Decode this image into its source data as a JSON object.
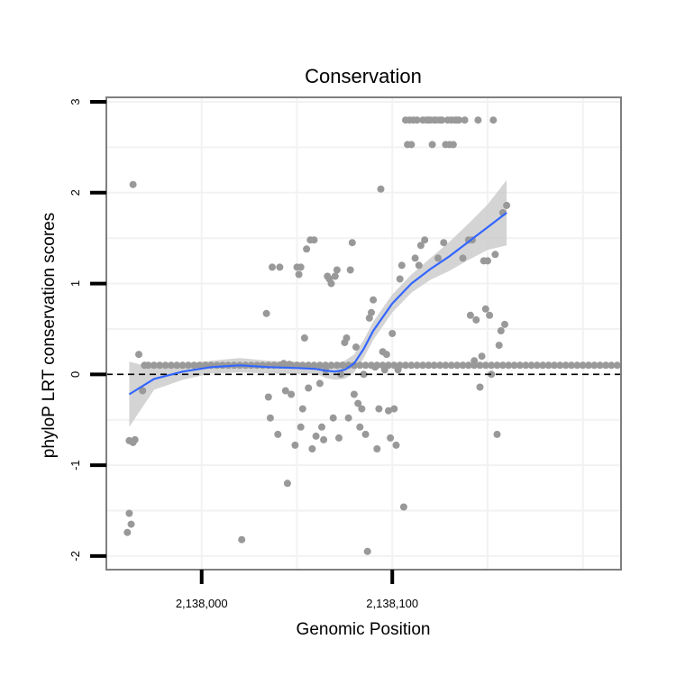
{
  "chart_data": {
    "type": "scatter",
    "title": "Conservation",
    "xlabel": "Genomic Position",
    "ylabel": "phyloP LRT conservation scores",
    "xlim": [
      2137950,
      2138220
    ],
    "ylim": [
      -2.15,
      3.05
    ],
    "x_ticks": [
      {
        "value": 2138000,
        "label": "2,138,000"
      },
      {
        "value": 2138100,
        "label": "2,138,100"
      }
    ],
    "y_ticks": [
      {
        "value": -2,
        "label": "-2"
      },
      {
        "value": -1,
        "label": "-1"
      },
      {
        "value": 0,
        "label": "0"
      },
      {
        "value": 1,
        "label": "1"
      },
      {
        "value": 2,
        "label": "2"
      },
      {
        "value": 3,
        "label": "3"
      }
    ],
    "grid": true,
    "reference_line": {
      "y": 0,
      "style": "dashed"
    },
    "colors": {
      "points": "#999999",
      "smooth": "#3366ff",
      "ribbon": "#cccccc",
      "frame": "#7f7f7f"
    },
    "series": [
      {
        "type": "points",
        "points": [
          [
            2137961,
            -1.74
          ],
          [
            2137962,
            -1.53
          ],
          [
            2137963,
            -1.65
          ],
          [
            2137962,
            -0.73
          ],
          [
            2137964,
            -0.75
          ],
          [
            2137965,
            -0.72
          ],
          [
            2137964,
            2.09
          ],
          [
            2137967,
            0.22
          ],
          [
            2137969,
            -0.18
          ],
          [
            2137970,
            0.1
          ],
          [
            2137972,
            0.1
          ],
          [
            2137975,
            0.1
          ],
          [
            2137978,
            0.1
          ],
          [
            2137981,
            0.1
          ],
          [
            2137984,
            0.1
          ],
          [
            2137987,
            0.1
          ],
          [
            2137990,
            0.1
          ],
          [
            2137993,
            0.1
          ],
          [
            2137996,
            0.1
          ],
          [
            2137999,
            0.1
          ],
          [
            2138002,
            0.1
          ],
          [
            2138005,
            0.1
          ],
          [
            2138008,
            0.1
          ],
          [
            2138011,
            0.1
          ],
          [
            2138014,
            0.1
          ],
          [
            2138017,
            0.1
          ],
          [
            2138020,
            0.1
          ],
          [
            2138023,
            0.1
          ],
          [
            2138026,
            0.1
          ],
          [
            2138029,
            0.1
          ],
          [
            2138032,
            0.1
          ],
          [
            2138035,
            0.1
          ],
          [
            2138038,
            0.1
          ],
          [
            2138041,
            0.1
          ],
          [
            2138044,
            0.1
          ],
          [
            2138047,
            0.1
          ],
          [
            2138050,
            0.1
          ],
          [
            2138053,
            0.1
          ],
          [
            2138056,
            0.1
          ],
          [
            2138059,
            0.1
          ],
          [
            2138062,
            0.1
          ],
          [
            2138065,
            0.1
          ],
          [
            2138068,
            0.1
          ],
          [
            2138071,
            0.1
          ],
          [
            2138074,
            0.1
          ],
          [
            2138077,
            0.1
          ],
          [
            2138080,
            0.1
          ],
          [
            2138083,
            0.1
          ],
          [
            2138086,
            0.1
          ],
          [
            2138089,
            0.1
          ],
          [
            2138092,
            0.1
          ],
          [
            2138095,
            0.1
          ],
          [
            2138098,
            0.1
          ],
          [
            2138101,
            0.1
          ],
          [
            2138104,
            0.1
          ],
          [
            2138107,
            0.1
          ],
          [
            2138110,
            0.1
          ],
          [
            2138113,
            0.1
          ],
          [
            2138116,
            0.1
          ],
          [
            2138119,
            0.1
          ],
          [
            2138122,
            0.1
          ],
          [
            2138125,
            0.1
          ],
          [
            2138128,
            0.1
          ],
          [
            2138131,
            0.1
          ],
          [
            2138134,
            0.1
          ],
          [
            2138137,
            0.1
          ],
          [
            2138140,
            0.1
          ],
          [
            2138143,
            0.1
          ],
          [
            2138146,
            0.1
          ],
          [
            2138149,
            0.1
          ],
          [
            2138152,
            0.1
          ],
          [
            2138155,
            0.1
          ],
          [
            2138158,
            0.1
          ],
          [
            2138161,
            0.1
          ],
          [
            2138164,
            0.1
          ],
          [
            2138167,
            0.1
          ],
          [
            2138170,
            0.1
          ],
          [
            2138173,
            0.1
          ],
          [
            2138176,
            0.1
          ],
          [
            2138179,
            0.1
          ],
          [
            2138182,
            0.1
          ],
          [
            2138185,
            0.1
          ],
          [
            2138188,
            0.1
          ],
          [
            2138191,
            0.1
          ],
          [
            2138194,
            0.1
          ],
          [
            2138197,
            0.1
          ],
          [
            2138200,
            0.1
          ],
          [
            2138203,
            0.1
          ],
          [
            2138206,
            0.1
          ],
          [
            2138209,
            0.1
          ],
          [
            2138212,
            0.1
          ],
          [
            2138215,
            0.1
          ],
          [
            2138218,
            0.1
          ],
          [
            2138021,
            -1.82
          ],
          [
            2138034,
            0.67
          ],
          [
            2138035,
            -0.25
          ],
          [
            2138036,
            -0.48
          ],
          [
            2138037,
            1.18
          ],
          [
            2138040,
            -0.66
          ],
          [
            2138041,
            1.18
          ],
          [
            2138043,
            0.12
          ],
          [
            2138044,
            -0.18
          ],
          [
            2138045,
            -1.2
          ],
          [
            2138046,
            0.11
          ],
          [
            2138047,
            -0.22
          ],
          [
            2138049,
            -0.78
          ],
          [
            2138050,
            1.18
          ],
          [
            2138051,
            1.1
          ],
          [
            2138052,
            1.18
          ],
          [
            2138052,
            -0.58
          ],
          [
            2138053,
            -0.38
          ],
          [
            2138054,
            0.4
          ],
          [
            2138055,
            1.38
          ],
          [
            2138056,
            -0.15
          ],
          [
            2138057,
            1.48
          ],
          [
            2138058,
            -0.82
          ],
          [
            2138059,
            1.48
          ],
          [
            2138060,
            -0.68
          ],
          [
            2138062,
            -0.1
          ],
          [
            2138063,
            -0.58
          ],
          [
            2138064,
            -0.72
          ],
          [
            2138065,
            0.05
          ],
          [
            2138066,
            1.08
          ],
          [
            2138067,
            1.05
          ],
          [
            2138068,
            1.0
          ],
          [
            2138069,
            -0.48
          ],
          [
            2138070,
            1.08
          ],
          [
            2138071,
            1.15
          ],
          [
            2138072,
            -0.7
          ],
          [
            2138073,
            0.0
          ],
          [
            2138075,
            0.35
          ],
          [
            2138076,
            0.4
          ],
          [
            2138077,
            -0.48
          ],
          [
            2138078,
            1.15
          ],
          [
            2138079,
            1.45
          ],
          [
            2138080,
            -0.22
          ],
          [
            2138081,
            0.3
          ],
          [
            2138082,
            -0.32
          ],
          [
            2138083,
            -0.58
          ],
          [
            2138084,
            -0.38
          ],
          [
            2138085,
            0.0
          ],
          [
            2138086,
            -0.66
          ],
          [
            2138087,
            -1.95
          ],
          [
            2138088,
            0.62
          ],
          [
            2138089,
            0.68
          ],
          [
            2138090,
            0.82
          ],
          [
            2138091,
            0.08
          ],
          [
            2138092,
            -0.82
          ],
          [
            2138093,
            -0.38
          ],
          [
            2138094,
            2.04
          ],
          [
            2138095,
            0.25
          ],
          [
            2138096,
            0.05
          ],
          [
            2138097,
            0.22
          ],
          [
            2138098,
            -0.4
          ],
          [
            2138099,
            -0.7
          ],
          [
            2138100,
            0.45
          ],
          [
            2138101,
            -0.38
          ],
          [
            2138102,
            -0.78
          ],
          [
            2138103,
            0.05
          ],
          [
            2138104,
            1.05
          ],
          [
            2138105,
            1.2
          ],
          [
            2138106,
            -1.46
          ],
          [
            2138107,
            2.8
          ],
          [
            2138108,
            2.53
          ],
          [
            2138109,
            2.8
          ],
          [
            2138110,
            2.53
          ],
          [
            2138111,
            2.8
          ],
          [
            2138112,
            1.28
          ],
          [
            2138113,
            2.8
          ],
          [
            2138114,
            1.2
          ],
          [
            2138115,
            1.42
          ],
          [
            2138116,
            2.8
          ],
          [
            2138117,
            1.48
          ],
          [
            2138118,
            2.8
          ],
          [
            2138119,
            2.8
          ],
          [
            2138120,
            2.8
          ],
          [
            2138121,
            2.53
          ],
          [
            2138122,
            2.8
          ],
          [
            2138123,
            2.8
          ],
          [
            2138124,
            1.28
          ],
          [
            2138125,
            2.8
          ],
          [
            2138126,
            2.8
          ],
          [
            2138127,
            1.45
          ],
          [
            2138128,
            2.53
          ],
          [
            2138129,
            2.8
          ],
          [
            2138130,
            2.53
          ],
          [
            2138131,
            2.8
          ],
          [
            2138132,
            2.53
          ],
          [
            2138133,
            2.8
          ],
          [
            2138134,
            2.8
          ],
          [
            2138135,
            2.8
          ],
          [
            2138137,
            1.28
          ],
          [
            2138138,
            2.8
          ],
          [
            2138140,
            1.48
          ],
          [
            2138141,
            0.65
          ],
          [
            2138142,
            1.48
          ],
          [
            2138143,
            0.15
          ],
          [
            2138144,
            0.6
          ],
          [
            2138145,
            2.8
          ],
          [
            2138146,
            -0.14
          ],
          [
            2138147,
            0.2
          ],
          [
            2138148,
            1.25
          ],
          [
            2138149,
            0.72
          ],
          [
            2138150,
            1.25
          ],
          [
            2138151,
            0.65
          ],
          [
            2138152,
            0.0
          ],
          [
            2138153,
            2.8
          ],
          [
            2138154,
            1.32
          ],
          [
            2138155,
            -0.66
          ],
          [
            2138156,
            0.32
          ],
          [
            2138157,
            0.48
          ],
          [
            2138158,
            1.78
          ],
          [
            2138159,
            0.55
          ],
          [
            2138160,
            1.86
          ]
        ]
      },
      {
        "type": "smooth",
        "x": [
          2137962,
          2137975,
          2137990,
          2138005,
          2138020,
          2138035,
          2138050,
          2138060,
          2138065,
          2138070,
          2138075,
          2138080,
          2138085,
          2138090,
          2138100,
          2138110,
          2138120,
          2138130,
          2138140,
          2138150,
          2138160
        ],
        "y": [
          -0.22,
          -0.05,
          0.03,
          0.08,
          0.1,
          0.08,
          0.07,
          0.06,
          0.04,
          0.03,
          0.05,
          0.12,
          0.28,
          0.48,
          0.78,
          1.0,
          1.16,
          1.3,
          1.46,
          1.62,
          1.78
        ],
        "lower": [
          -0.58,
          -0.17,
          -0.06,
          0.01,
          0.02,
          0.01,
          0.0,
          0.01,
          -0.04,
          -0.06,
          -0.05,
          0.02,
          0.18,
          0.38,
          0.68,
          0.9,
          1.04,
          1.14,
          1.26,
          1.37,
          1.42
        ],
        "upper": [
          0.14,
          0.07,
          0.12,
          0.15,
          0.18,
          0.15,
          0.14,
          0.11,
          0.12,
          0.12,
          0.15,
          0.22,
          0.38,
          0.58,
          0.88,
          1.1,
          1.28,
          1.46,
          1.66,
          1.87,
          2.14
        ]
      }
    ]
  }
}
